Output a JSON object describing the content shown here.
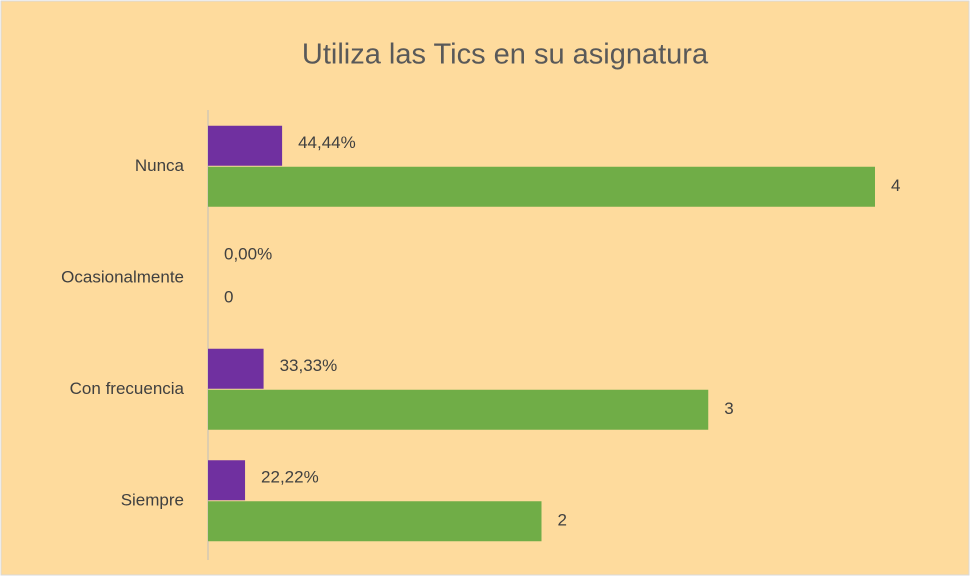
{
  "chart_data": {
    "type": "hbar",
    "title": "Utiliza las Tics en su asignatura",
    "categories": [
      "Nunca",
      "Ocasionalmente",
      "Con frecuencia",
      "Siempre"
    ],
    "series": [
      {
        "color": "#7030a0",
        "values": [
          0.4444,
          0,
          0.3333,
          0.2222
        ],
        "value_labels": [
          "44,44%",
          "0,00%",
          "33,33%",
          "22,22%"
        ]
      },
      {
        "color": "#70ad47",
        "values": [
          4,
          0,
          3,
          2
        ]
      }
    ],
    "xlim": [
      0,
      4
    ]
  }
}
